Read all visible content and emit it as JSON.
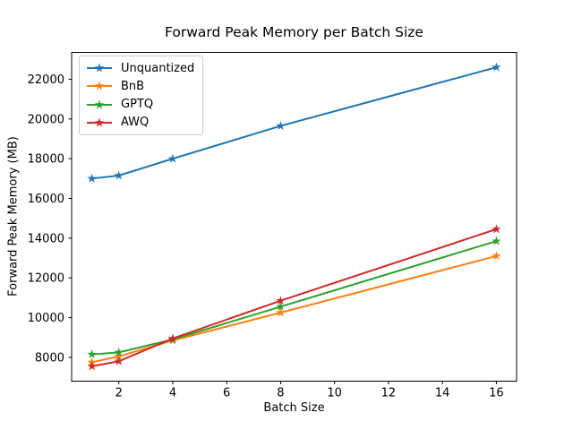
{
  "chart_data": {
    "type": "line",
    "title": "Forward Peak Memory per Batch Size",
    "xlabel": "Batch Size",
    "ylabel": "Forward Peak Memory (MB)",
    "marker": "star",
    "grid": false,
    "legend_position": "upper left",
    "x": [
      1,
      2,
      4,
      8,
      16
    ],
    "series": [
      {
        "name": "Unquantized",
        "color": "#1f77b4",
        "values": [
          17000,
          17150,
          18000,
          19650,
          22600
        ]
      },
      {
        "name": "BnB",
        "color": "#ff7f0e",
        "values": [
          7750,
          8050,
          8850,
          10250,
          13100
        ]
      },
      {
        "name": "GPTQ",
        "color": "#2ca02c",
        "values": [
          8150,
          8250,
          8900,
          10550,
          13850
        ]
      },
      {
        "name": "AWQ",
        "color": "#d62728",
        "values": [
          7550,
          7800,
          8950,
          10850,
          14450
        ]
      }
    ],
    "xticks": [
      2,
      4,
      6,
      8,
      10,
      12,
      14,
      16
    ],
    "yticks": [
      8000,
      10000,
      12000,
      14000,
      16000,
      18000,
      20000,
      22000
    ],
    "xlim": [
      0.25,
      16.75
    ],
    "ylim": [
      6800,
      23350
    ],
    "axis_color": "#000000",
    "background_color": "#ffffff"
  }
}
